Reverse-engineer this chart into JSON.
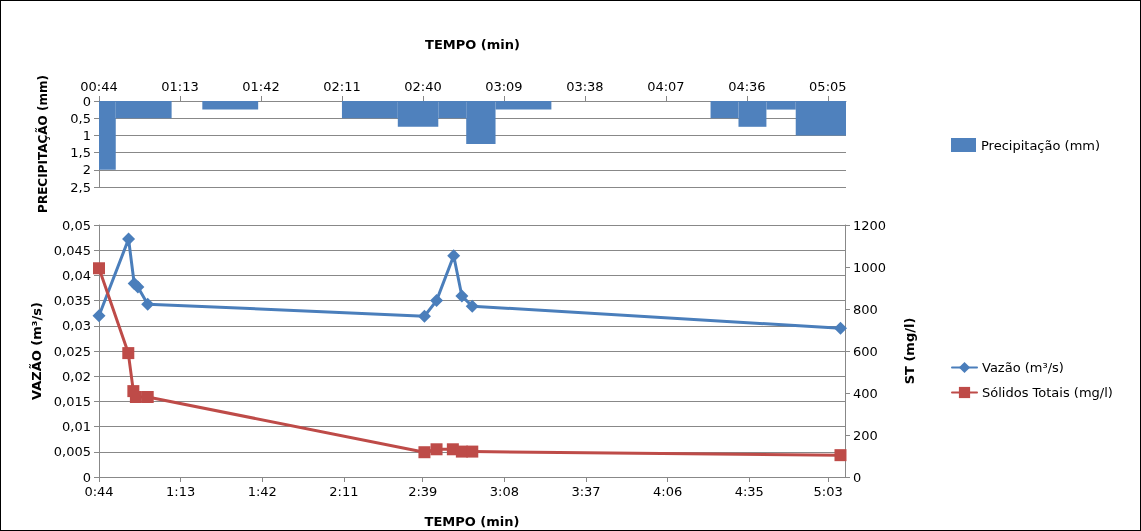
{
  "chart_data": [
    {
      "type": "histogram",
      "xlabel": "TEMPO (min)",
      "ylabel": "PRECIPITAÇÃO (mm)",
      "bins": [
        0.7333,
        0.8333,
        1.1667,
        1.35,
        1.6833,
        2.1833,
        2.5167,
        2.7583,
        2.925,
        3.1,
        3.4333,
        4.3833,
        4.55,
        4.7167,
        4.8917,
        5.1917
      ],
      "series": [
        {
          "name": "Precipitação (mm)",
          "color": "#4f81bd",
          "values": [
            2,
            0.5,
            0,
            0.25,
            0,
            0.5,
            0.75,
            0.5,
            1.25,
            0.25,
            0,
            0.5,
            0.75,
            0.25,
            1
          ]
        }
      ],
      "xlim": [
        0.7333,
        5.1917
      ],
      "xticks": [
        {
          "value": 0.7333,
          "label": "00:44"
        },
        {
          "value": 1.2167,
          "label": "01:13"
        },
        {
          "value": 1.7,
          "label": "01:42"
        },
        {
          "value": 2.1833,
          "label": "02:11"
        },
        {
          "value": 2.6667,
          "label": "02:40"
        },
        {
          "value": 3.15,
          "label": "03:09"
        },
        {
          "value": 3.6333,
          "label": "03:38"
        },
        {
          "value": 4.1167,
          "label": "04:07"
        },
        {
          "value": 4.6,
          "label": "04:36"
        },
        {
          "value": 5.0833,
          "label": "05:05"
        }
      ],
      "ylim": [
        2.5,
        0
      ],
      "yticks": [
        0,
        {
          "value": 0.5,
          "label": "0,5"
        },
        1,
        {
          "value": 1.5,
          "label": "1,5"
        },
        2,
        {
          "value": 2.5,
          "label": "2,5"
        }
      ],
      "grid": "y",
      "legend": "right"
    },
    {
      "type": "line",
      "xlabel": "TEMPO (min)",
      "ylabel": "VAZÃO (m³/s)",
      "y2label": "ST (mg/l)",
      "series": [
        {
          "name": "Vazão (m³/s)",
          "color": "#4a7ebb",
          "marker": "diamond",
          "x": [
            0.7333,
            0.9083,
            0.9417,
            0.9633,
            1.0217,
            2.66,
            2.7317,
            2.8333,
            2.8817,
            2.9433,
            5.1233
          ],
          "values": [
            0.032,
            0.0472,
            0.0384,
            0.0377,
            0.0343,
            0.0319,
            0.035,
            0.0439,
            0.0359,
            0.0339,
            0.0295
          ]
        },
        {
          "name": "Sólidos Totais (mg/l)",
          "color": "#be4b48",
          "marker": "square",
          "axis": "y2",
          "x": [
            0.7333,
            0.9067,
            0.9367,
            0.9517,
            1.0217,
            2.66,
            2.7317,
            2.8283,
            2.8817,
            2.9433,
            5.1233
          ],
          "values": [
            994,
            590,
            409,
            381,
            381,
            118,
            132,
            132,
            121,
            121,
            104
          ]
        }
      ],
      "xlim": [
        0.7333,
        5.15
      ],
      "xticks": [
        {
          "value": 0.7333,
          "label": "0:44"
        },
        {
          "value": 1.2167,
          "label": "1:13"
        },
        {
          "value": 1.7,
          "label": "1:42"
        },
        {
          "value": 2.1833,
          "label": "2:11"
        },
        {
          "value": 2.65,
          "label": "2:39"
        },
        {
          "value": 3.1333,
          "label": "3:08"
        },
        {
          "value": 3.6167,
          "label": "3:37"
        },
        {
          "value": 4.1,
          "label": "4:06"
        },
        {
          "value": 4.5833,
          "label": "4:35"
        },
        {
          "value": 5.05,
          "label": "5:03"
        }
      ],
      "ylim": [
        0,
        0.05
      ],
      "yticks": [
        0,
        {
          "value": 0.005,
          "label": "0,005"
        },
        {
          "value": 0.01,
          "label": "0,01"
        },
        {
          "value": 0.015,
          "label": "0,015"
        },
        {
          "value": 0.02,
          "label": "0,02"
        },
        {
          "value": 0.025,
          "label": "0,025"
        },
        {
          "value": 0.03,
          "label": "0,03"
        },
        {
          "value": 0.035,
          "label": "0,035"
        },
        {
          "value": 0.04,
          "label": "0,04"
        },
        {
          "value": 0.045,
          "label": "0,045"
        },
        {
          "value": 0.05,
          "label": "0,05"
        }
      ],
      "y2lim": [
        0,
        1200
      ],
      "y2ticks": [
        0,
        200,
        400,
        600,
        800,
        1000,
        1200
      ],
      "grid": "y",
      "legend": "right"
    }
  ]
}
